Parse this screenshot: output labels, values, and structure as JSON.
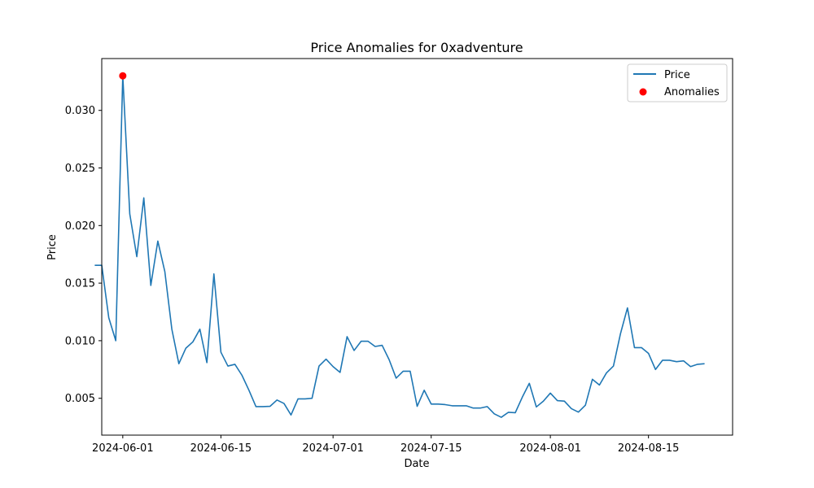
{
  "chart_data": {
    "type": "line",
    "title": "Price Anomalies for 0xadventure",
    "xlabel": "Date",
    "ylabel": "Price",
    "x_tick_labels": [
      "2024-06-01",
      "2024-06-15",
      "2024-07-01",
      "2024-07-15",
      "2024-08-01",
      "2024-08-15"
    ],
    "y_tick_labels": [
      "0.005",
      "0.010",
      "0.015",
      "0.020",
      "0.025",
      "0.030"
    ],
    "xlim": [
      "2024-05-29",
      "2024-08-27"
    ],
    "ylim": [
      0.0018,
      0.0345
    ],
    "grid": false,
    "legend_position": "top-right",
    "series": [
      {
        "name": "Price",
        "kind": "line",
        "color": "#1f77b4",
        "points": [
          [
            "2024-05-28",
            0.01655
          ],
          [
            "2024-05-29",
            0.01655
          ],
          [
            "2024-05-30",
            0.012
          ],
          [
            "2024-05-31",
            0.01
          ],
          [
            "2024-06-01",
            0.033
          ],
          [
            "2024-06-02",
            0.021
          ],
          [
            "2024-06-03",
            0.0173
          ],
          [
            "2024-06-04",
            0.0224
          ],
          [
            "2024-06-05",
            0.0148
          ],
          [
            "2024-06-06",
            0.01865
          ],
          [
            "2024-06-07",
            0.016
          ],
          [
            "2024-06-08",
            0.011
          ],
          [
            "2024-06-09",
            0.008
          ],
          [
            "2024-06-10",
            0.00935
          ],
          [
            "2024-06-11",
            0.0099
          ],
          [
            "2024-06-12",
            0.011
          ],
          [
            "2024-06-13",
            0.0081
          ],
          [
            "2024-06-14",
            0.0158
          ],
          [
            "2024-06-15",
            0.009
          ],
          [
            "2024-06-16",
            0.0078
          ],
          [
            "2024-06-17",
            0.00795
          ],
          [
            "2024-06-18",
            0.007
          ],
          [
            "2024-06-19",
            0.0057
          ],
          [
            "2024-06-20",
            0.00428
          ],
          [
            "2024-06-21",
            0.00428
          ],
          [
            "2024-06-22",
            0.0043
          ],
          [
            "2024-06-23",
            0.00485
          ],
          [
            "2024-06-24",
            0.00455
          ],
          [
            "2024-06-25",
            0.00355
          ],
          [
            "2024-06-26",
            0.00495
          ],
          [
            "2024-06-27",
            0.00495
          ],
          [
            "2024-06-28",
            0.005
          ],
          [
            "2024-06-29",
            0.0078
          ],
          [
            "2024-06-30",
            0.0084
          ],
          [
            "2024-07-01",
            0.00775
          ],
          [
            "2024-07-02",
            0.00725
          ],
          [
            "2024-07-03",
            0.01035
          ],
          [
            "2024-07-04",
            0.00915
          ],
          [
            "2024-07-05",
            0.00995
          ],
          [
            "2024-07-06",
            0.00995
          ],
          [
            "2024-07-07",
            0.0095
          ],
          [
            "2024-07-08",
            0.0096
          ],
          [
            "2024-07-09",
            0.00835
          ],
          [
            "2024-07-10",
            0.00675
          ],
          [
            "2024-07-11",
            0.00735
          ],
          [
            "2024-07-12",
            0.00735
          ],
          [
            "2024-07-13",
            0.0043
          ],
          [
            "2024-07-14",
            0.0057
          ],
          [
            "2024-07-15",
            0.0045
          ],
          [
            "2024-07-16",
            0.0045
          ],
          [
            "2024-07-17",
            0.00445
          ],
          [
            "2024-07-18",
            0.00435
          ],
          [
            "2024-07-19",
            0.00435
          ],
          [
            "2024-07-20",
            0.00435
          ],
          [
            "2024-07-21",
            0.00415
          ],
          [
            "2024-07-22",
            0.00415
          ],
          [
            "2024-07-23",
            0.00428
          ],
          [
            "2024-07-24",
            0.00365
          ],
          [
            "2024-07-25",
            0.00335
          ],
          [
            "2024-07-26",
            0.00378
          ],
          [
            "2024-07-27",
            0.00375
          ],
          [
            "2024-07-28",
            0.0051
          ],
          [
            "2024-07-29",
            0.0063
          ],
          [
            "2024-07-30",
            0.00425
          ],
          [
            "2024-07-31",
            0.00475
          ],
          [
            "2024-08-01",
            0.00545
          ],
          [
            "2024-08-02",
            0.0048
          ],
          [
            "2024-08-03",
            0.00475
          ],
          [
            "2024-08-04",
            0.0041
          ],
          [
            "2024-08-05",
            0.0038
          ],
          [
            "2024-08-06",
            0.0044
          ],
          [
            "2024-08-07",
            0.00665
          ],
          [
            "2024-08-08",
            0.00615
          ],
          [
            "2024-08-09",
            0.0072
          ],
          [
            "2024-08-10",
            0.0078
          ],
          [
            "2024-08-11",
            0.0106
          ],
          [
            "2024-08-12",
            0.01285
          ],
          [
            "2024-08-13",
            0.0094
          ],
          [
            "2024-08-14",
            0.0094
          ],
          [
            "2024-08-15",
            0.0089
          ],
          [
            "2024-08-16",
            0.0075
          ],
          [
            "2024-08-17",
            0.0083
          ],
          [
            "2024-08-18",
            0.0083
          ],
          [
            "2024-08-19",
            0.00818
          ],
          [
            "2024-08-20",
            0.00825
          ],
          [
            "2024-08-21",
            0.00775
          ],
          [
            "2024-08-22",
            0.00795
          ],
          [
            "2024-08-23",
            0.008
          ]
        ]
      },
      {
        "name": "Anomalies",
        "kind": "scatter",
        "color": "#ff0000",
        "points": [
          [
            "2024-06-01",
            0.033
          ]
        ]
      }
    ]
  }
}
